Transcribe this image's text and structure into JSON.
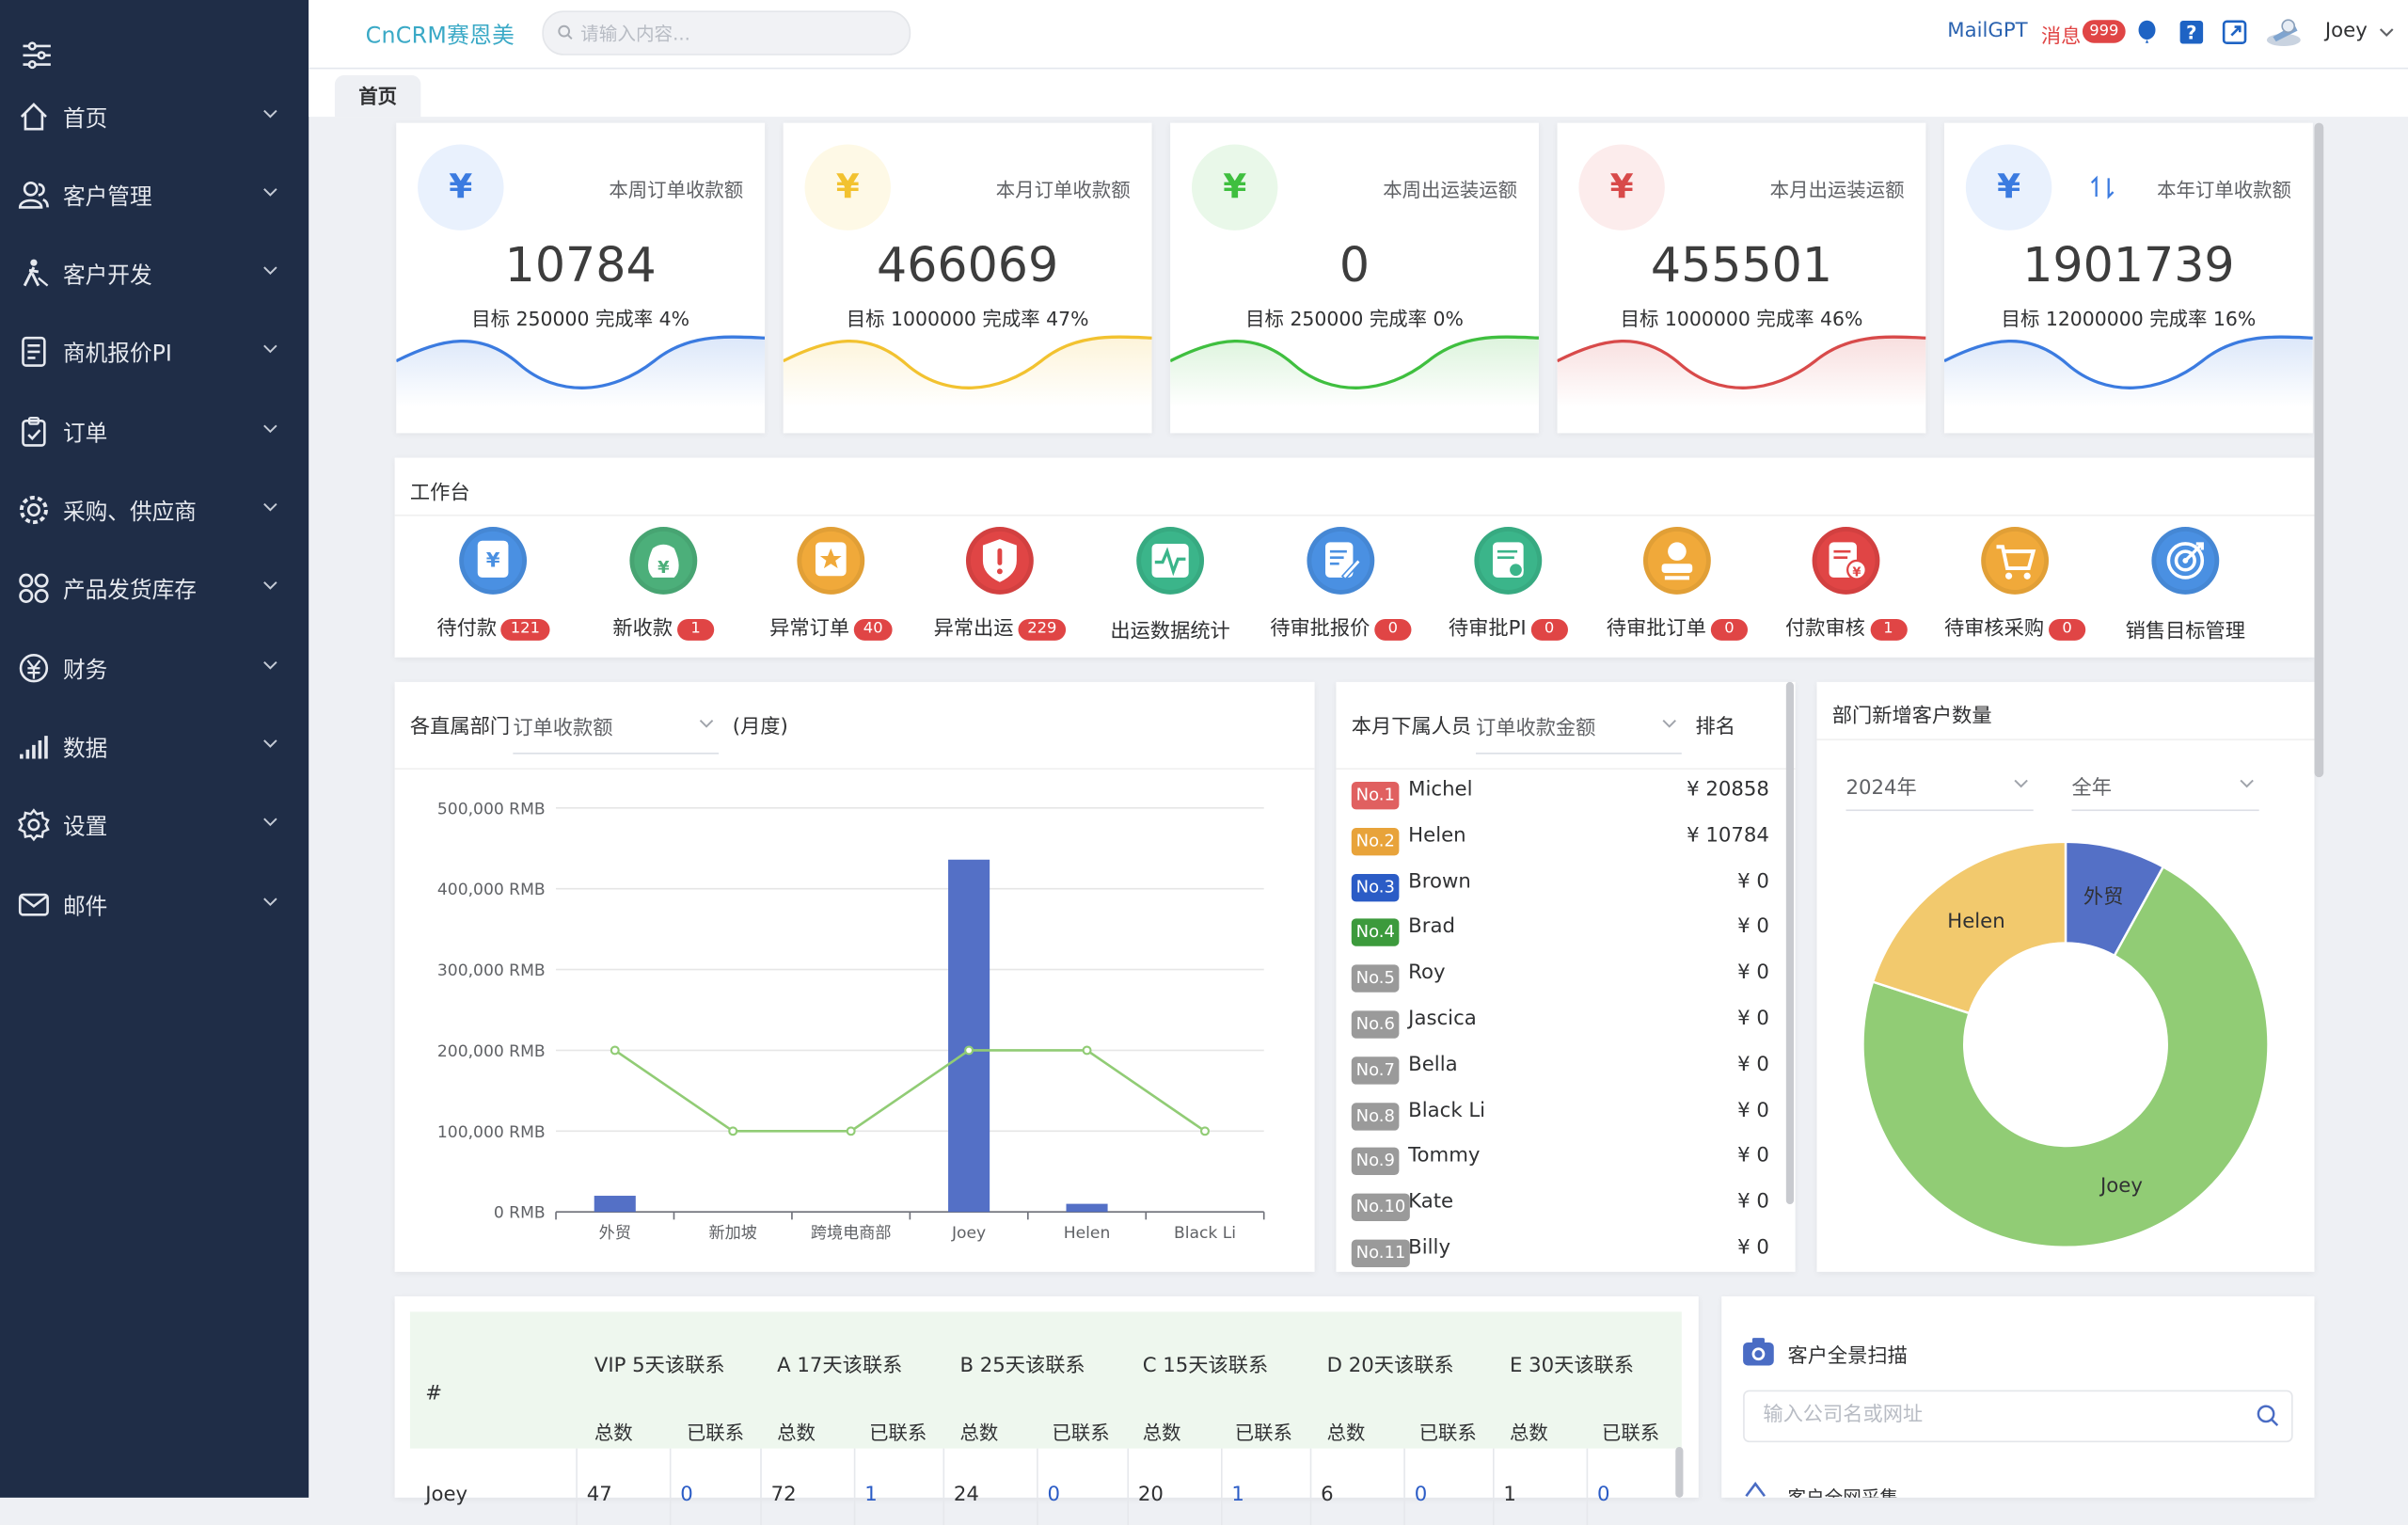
{
  "header": {
    "brand": "CnCRM赛恩美",
    "search_placeholder": "请输入内容...",
    "mailgpt": "MailGPT",
    "message_label": "消息",
    "message_count": "999",
    "user": "Joey"
  },
  "sidebar": {
    "items": [
      {
        "label": "首页",
        "icon": "home-icon"
      },
      {
        "label": "客户管理",
        "icon": "users-icon"
      },
      {
        "label": "客户开发",
        "icon": "person-walking-icon"
      },
      {
        "label": "商机报价PI",
        "icon": "document-icon"
      },
      {
        "label": "订单",
        "icon": "clipboard-icon"
      },
      {
        "label": "采购、供应商",
        "icon": "gear-badge-icon"
      },
      {
        "label": "产品发货库存",
        "icon": "grid-icon"
      },
      {
        "label": "财务",
        "icon": "money-icon"
      },
      {
        "label": "数据",
        "icon": "bar-signal-icon"
      },
      {
        "label": "设置",
        "icon": "settings-icon"
      },
      {
        "label": "邮件",
        "icon": "mail-icon"
      }
    ]
  },
  "tabs": [
    {
      "label": "首页"
    }
  ],
  "stats": [
    {
      "title": "本周订单收款额",
      "value": "10784",
      "sub": "目标 250000 完成率 4%",
      "color": "#3b7be0",
      "bg": "#e9f1fd",
      "progress_pct": 4
    },
    {
      "title": "本月订单收款额",
      "value": "466069",
      "sub": "目标 1000000 完成率 47%",
      "color": "#f2c230",
      "bg": "#fef9e6",
      "progress_pct": 47
    },
    {
      "title": "本周出运装运额",
      "value": "0",
      "sub": "目标 250000 完成率 0%",
      "color": "#3fbf3f",
      "bg": "#e9f8e9",
      "progress_pct": 0
    },
    {
      "title": "本月出运装运额",
      "value": "455501",
      "sub": "目标 1000000 完成率 46%",
      "color": "#d84a4a",
      "bg": "#fcecec",
      "progress_pct": 46
    },
    {
      "title": "本年订单收款额",
      "value": "1901739",
      "sub": "目标 12000000 完成率 16%",
      "color": "#3b7be0",
      "bg": "#e9f1fd",
      "progress_pct": 16
    }
  ],
  "workbench": {
    "title": "工作台",
    "items": [
      {
        "label": "待付款",
        "badge": "121",
        "icon": "payment-icon",
        "color": "#4a90e2"
      },
      {
        "label": "新收款",
        "badge": "1",
        "icon": "money-bag-icon",
        "color": "#4caf7a"
      },
      {
        "label": "异常订单",
        "badge": "40",
        "icon": "order-alert-icon",
        "color": "#f0a93a"
      },
      {
        "label": "异常出运",
        "badge": "229",
        "icon": "shield-alert-icon",
        "color": "#e04545"
      },
      {
        "label": "出运数据统计",
        "badge": "",
        "icon": "pulse-chart-icon",
        "color": "#3bb58a"
      },
      {
        "label": "待审批报价",
        "badge": "0",
        "icon": "quote-edit-icon",
        "color": "#4a90e2"
      },
      {
        "label": "待审批PI",
        "badge": "0",
        "icon": "pi-doc-icon",
        "color": "#3bb58a"
      },
      {
        "label": "待审批订单",
        "badge": "0",
        "icon": "stamp-icon",
        "color": "#f0a93a"
      },
      {
        "label": "付款审核",
        "badge": "1",
        "icon": "payment-review-icon",
        "color": "#e04545"
      },
      {
        "label": "待审核采购",
        "badge": "0",
        "icon": "cart-icon",
        "color": "#f0a93a"
      },
      {
        "label": "销售目标管理",
        "badge": "",
        "icon": "target-icon",
        "color": "#4a90e2"
      }
    ]
  },
  "dept_chart": {
    "prefix": "各直属部门",
    "metric": "订单收款额",
    "suffix": "(月度)"
  },
  "chart_data": {
    "type": "bar",
    "categories": [
      "外贸",
      "新加坡",
      "跨境电商部",
      "Joey",
      "Helen",
      "Black Li"
    ],
    "series": [
      {
        "type": "bar",
        "values": [
          20000,
          0,
          0,
          436000,
          10000,
          0
        ],
        "color": "#5470c6"
      },
      {
        "type": "line",
        "values": [
          200000,
          100000,
          100000,
          200000,
          200000,
          100000
        ],
        "color": "#91cc75"
      }
    ],
    "ylim": [
      0,
      500000
    ],
    "yticks": [
      "0 RMB",
      "100,000 RMB",
      "200,000 RMB",
      "300,000 RMB",
      "400,000 RMB",
      "500,000 RMB"
    ],
    "grid": true
  },
  "ranking": {
    "title": "本月下属人员",
    "metric": "订单收款金额",
    "suffix": "排名",
    "rows": [
      {
        "no": "No.1",
        "name": "Michel",
        "value": "¥ 20858",
        "color": "#e06060"
      },
      {
        "no": "No.2",
        "name": "Helen",
        "value": "¥ 10784",
        "color": "#e8a33a"
      },
      {
        "no": "No.3",
        "name": "Brown",
        "value": "¥ 0",
        "color": "#2b5cc6"
      },
      {
        "no": "No.4",
        "name": "Brad",
        "value": "¥ 0",
        "color": "#3c9a3c"
      },
      {
        "no": "No.5",
        "name": "Roy",
        "value": "¥ 0",
        "color": "#9a9a9a"
      },
      {
        "no": "No.6",
        "name": "Jascica",
        "value": "¥ 0",
        "color": "#9a9a9a"
      },
      {
        "no": "No.7",
        "name": "Bella",
        "value": "¥ 0",
        "color": "#9a9a9a"
      },
      {
        "no": "No.8",
        "name": "Black Li",
        "value": "¥ 0",
        "color": "#9a9a9a"
      },
      {
        "no": "No.9",
        "name": "Tommy",
        "value": "¥ 0",
        "color": "#9a9a9a"
      },
      {
        "no": "No.10",
        "name": "Kate",
        "value": "¥ 0",
        "color": "#9a9a9a"
      },
      {
        "no": "No.11",
        "name": "Billy",
        "value": "¥ 0",
        "color": "#9a9a9a"
      }
    ]
  },
  "new_customers": {
    "title": "部门新增客户数量",
    "year": "2024年",
    "period": "全年",
    "slices": [
      {
        "name": "外贸",
        "value": 8,
        "color": "#5470c6"
      },
      {
        "name": "Joey",
        "value": 72,
        "color": "#91cc75"
      },
      {
        "name": "Helen",
        "value": 20,
        "color": "#f2c96d"
      }
    ]
  },
  "followup": {
    "hash": "#",
    "groups": [
      "VIP 5天该联系",
      "A 17天该联系",
      "B 25天该联系",
      "C 15天该联系",
      "D 20天该联系",
      "E 30天该联系"
    ],
    "sub_total": "总数",
    "sub_contacted": "已联系",
    "row": {
      "name": "Joey",
      "values": [
        "47",
        "0",
        "72",
        "1",
        "24",
        "0",
        "20",
        "1",
        "6",
        "0",
        "1",
        "0"
      ]
    }
  },
  "scan": {
    "title": "客户全景扫描",
    "placeholder": "输入公司名或网址",
    "next_item": "客户全网采集"
  }
}
